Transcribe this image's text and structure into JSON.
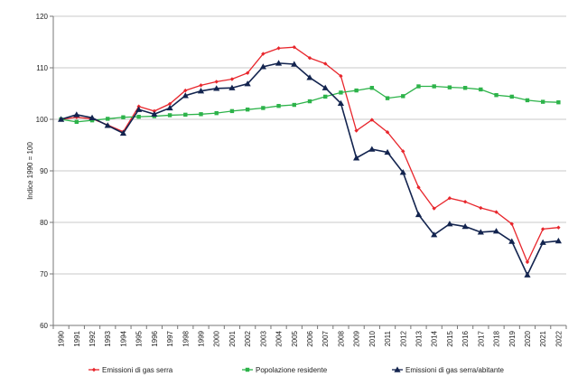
{
  "chart_data": {
    "type": "line",
    "title": "",
    "xlabel": "",
    "ylabel": "Indice 1990 = 100",
    "ylim": [
      60,
      120
    ],
    "yticks": [
      60,
      70,
      80,
      90,
      100,
      110,
      120
    ],
    "grid": "horizontal",
    "legend_position": "bottom",
    "x": [
      "1990",
      "1991",
      "1992",
      "1993",
      "1994",
      "1995",
      "1996",
      "1997",
      "1998",
      "1999",
      "2000",
      "2001",
      "2002",
      "2003",
      "2004",
      "2005",
      "2006",
      "2007",
      "2008",
      "2009",
      "2010",
      "2011",
      "2012",
      "2013",
      "2014",
      "2015",
      "2016",
      "2017",
      "2018",
      "2019",
      "2020",
      "2021",
      "2022"
    ],
    "series": [
      {
        "name": "Emissioni di gas serra",
        "color": "#e8262c",
        "marker": "diamond",
        "values": [
          100.0,
          100.4,
          100.1,
          98.9,
          97.6,
          102.5,
          101.6,
          103.0,
          105.6,
          106.6,
          107.3,
          107.8,
          109.0,
          112.7,
          113.8,
          114.0,
          111.9,
          110.8,
          108.4,
          97.8,
          99.9,
          97.5,
          93.8,
          86.8,
          82.7,
          84.7,
          84.0,
          82.8,
          82.0,
          79.7,
          72.3,
          78.7,
          79.0
        ]
      },
      {
        "name": "Popolazione residente",
        "color": "#2db34a",
        "marker": "square",
        "values": [
          100.0,
          99.5,
          99.8,
          100.1,
          100.4,
          100.5,
          100.6,
          100.8,
          100.9,
          101.0,
          101.2,
          101.6,
          101.9,
          102.2,
          102.6,
          102.8,
          103.5,
          104.4,
          105.2,
          105.6,
          106.1,
          104.1,
          104.5,
          106.4,
          106.4,
          106.2,
          106.1,
          105.8,
          104.7,
          104.4,
          103.7,
          103.4,
          103.3
        ]
      },
      {
        "name": "Emissioni di gas serra/abitante",
        "color": "#13244f",
        "marker": "triangle",
        "values": [
          100.0,
          100.9,
          100.3,
          98.8,
          97.3,
          101.9,
          101.0,
          102.2,
          104.6,
          105.5,
          106.0,
          106.1,
          106.9,
          110.2,
          110.9,
          110.7,
          108.1,
          106.1,
          103.1,
          92.5,
          94.2,
          93.6,
          89.7,
          81.5,
          77.6,
          79.7,
          79.2,
          78.1,
          78.3,
          76.3,
          69.8,
          76.1,
          76.4
        ]
      }
    ]
  }
}
